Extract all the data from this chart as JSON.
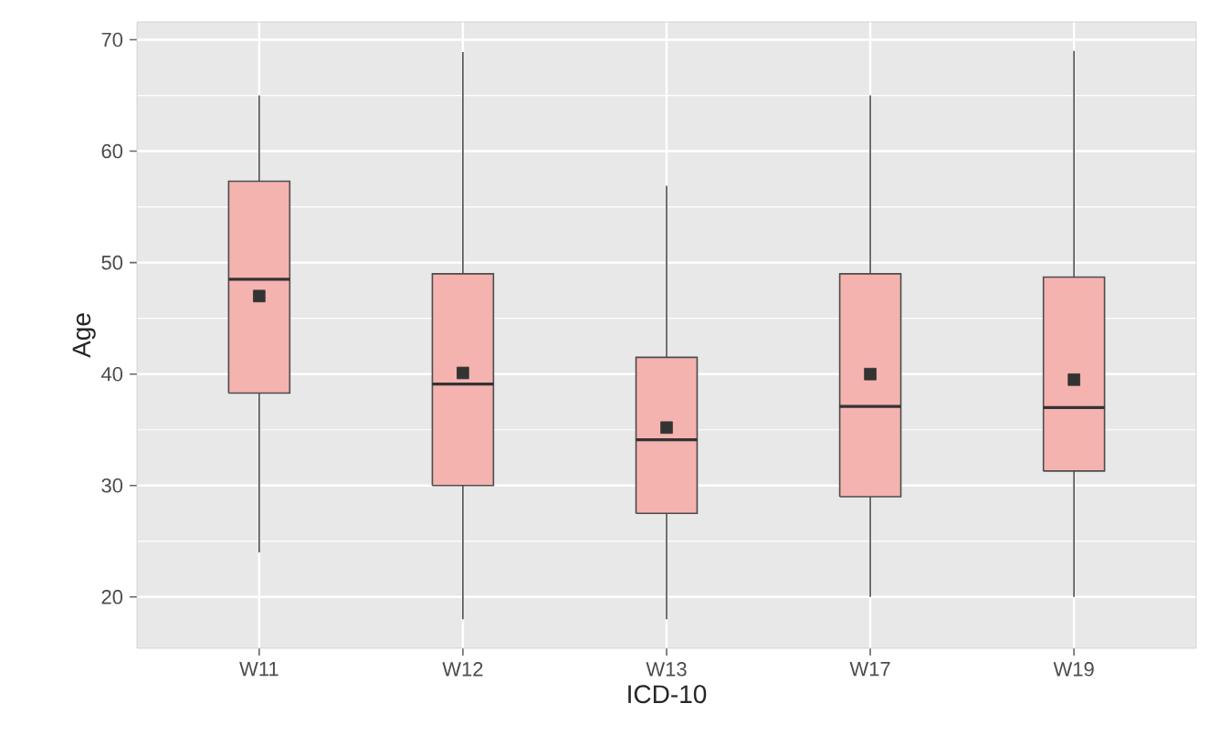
{
  "chart_data": {
    "type": "box",
    "xlabel": "ICD-10",
    "ylabel": "Age",
    "categories": [
      "W11",
      "W12",
      "W13",
      "W17",
      "W19"
    ],
    "series": [
      {
        "color": "#f4b3af",
        "boxes": [
          {
            "low": 24,
            "q1": 38.3,
            "median": 48.5,
            "q3": 57.3,
            "high": 65,
            "mean": 47
          },
          {
            "low": 18,
            "q1": 30,
            "median": 39.1,
            "q3": 49,
            "high": 68.9,
            "mean": 40.1
          },
          {
            "low": 18,
            "q1": 27.5,
            "median": 34.1,
            "q3": 41.5,
            "high": 56.9,
            "mean": 35.2
          },
          {
            "low": 20,
            "q1": 29,
            "median": 37.1,
            "q3": 49,
            "high": 65,
            "mean": 40
          },
          {
            "low": 20,
            "q1": 31.3,
            "median": 37,
            "q3": 48.7,
            "high": 69,
            "mean": 39.5
          }
        ]
      }
    ],
    "ylim": [
      15.4,
      71.6
    ],
    "yticks": [
      20,
      30,
      40,
      50,
      60,
      70
    ],
    "grid": true
  }
}
